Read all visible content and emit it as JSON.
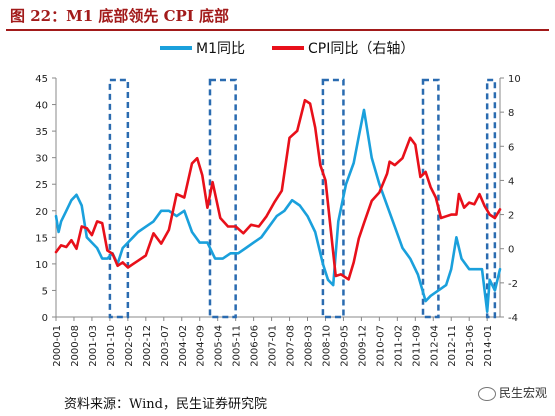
{
  "header": {
    "title": "图 22：M1 底部领先 CPI 底部"
  },
  "footer": {
    "source": "资料来源：Wind，民生证券研究院",
    "watermark": "民生宏观"
  },
  "colors": {
    "m1": "#1aa0dc",
    "cpi": "#e8101a",
    "box": "#2a6bb0",
    "title": "#a21a1a"
  },
  "chart_data": {
    "type": "line",
    "title": "",
    "xlabel": "",
    "ylabel": "",
    "ylim": [
      0,
      45
    ],
    "y2lim": [
      -4,
      10
    ],
    "yticks": [
      0,
      5,
      10,
      15,
      20,
      25,
      30,
      35,
      40,
      45
    ],
    "y2ticks": [
      -4,
      -2,
      0,
      2,
      4,
      6,
      8,
      10
    ],
    "x_tick_labels": [
      "2000-01",
      "2000-08",
      "2001-03",
      "2001-10",
      "2002-05",
      "2002-12",
      "2003-07",
      "2004-02",
      "2004-09",
      "2005-04",
      "2005-11",
      "2006-06",
      "2007-01",
      "2007-08",
      "2008-03",
      "2008-10",
      "2009-05",
      "2009-12",
      "2010-07",
      "2011-02",
      "2011-09",
      "2012-04",
      "2012-11",
      "2013-06",
      "2014-01"
    ],
    "legend": [
      "M1同比",
      "CPI同比（右轴）"
    ],
    "legend_position": "top",
    "highlight_windows": [
      [
        "2001-10",
        "2002-05"
      ],
      [
        "2005-01",
        "2005-11"
      ],
      [
        "2008-09",
        "2009-05"
      ],
      [
        "2011-12",
        "2012-06"
      ],
      [
        "2014-01",
        "2014-04"
      ]
    ],
    "series": [
      {
        "name": "M1同比",
        "axis": "left",
        "points": [
          [
            "2000-01",
            19
          ],
          [
            "2000-02",
            16
          ],
          [
            "2000-03",
            18
          ],
          [
            "2000-05",
            20
          ],
          [
            "2000-07",
            22
          ],
          [
            "2000-09",
            23
          ],
          [
            "2000-11",
            21
          ],
          [
            "2001-01",
            15
          ],
          [
            "2001-03",
            14
          ],
          [
            "2001-05",
            13
          ],
          [
            "2001-07",
            11
          ],
          [
            "2001-09",
            11
          ],
          [
            "2001-11",
            12
          ],
          [
            "2002-01",
            10
          ],
          [
            "2002-03",
            13
          ],
          [
            "2002-05",
            14
          ],
          [
            "2002-07",
            15
          ],
          [
            "2002-09",
            16
          ],
          [
            "2002-12",
            17
          ],
          [
            "2003-03",
            18
          ],
          [
            "2003-06",
            20
          ],
          [
            "2003-09",
            20
          ],
          [
            "2003-12",
            19
          ],
          [
            "2004-03",
            20
          ],
          [
            "2004-06",
            16
          ],
          [
            "2004-09",
            14
          ],
          [
            "2004-12",
            14
          ],
          [
            "2005-03",
            11
          ],
          [
            "2005-06",
            11
          ],
          [
            "2005-09",
            12
          ],
          [
            "2005-12",
            12
          ],
          [
            "2006-03",
            13
          ],
          [
            "2006-06",
            14
          ],
          [
            "2006-09",
            15
          ],
          [
            "2006-12",
            17
          ],
          [
            "2007-03",
            19
          ],
          [
            "2007-06",
            20
          ],
          [
            "2007-09",
            22
          ],
          [
            "2007-12",
            21
          ],
          [
            "2008-03",
            19
          ],
          [
            "2008-06",
            16
          ],
          [
            "2008-09",
            10
          ],
          [
            "2008-11",
            7
          ],
          [
            "2009-01",
            6
          ],
          [
            "2009-03",
            18
          ],
          [
            "2009-06",
            25
          ],
          [
            "2009-09",
            29
          ],
          [
            "2009-11",
            34
          ],
          [
            "2010-01",
            39
          ],
          [
            "2010-04",
            30
          ],
          [
            "2010-07",
            25
          ],
          [
            "2010-10",
            21
          ],
          [
            "2011-01",
            17
          ],
          [
            "2011-04",
            13
          ],
          [
            "2011-07",
            11
          ],
          [
            "2011-10",
            8
          ],
          [
            "2012-01",
            3
          ],
          [
            "2012-03",
            4
          ],
          [
            "2012-06",
            5
          ],
          [
            "2012-09",
            6
          ],
          [
            "2012-11",
            9
          ],
          [
            "2013-01",
            15
          ],
          [
            "2013-03",
            11
          ],
          [
            "2013-06",
            9
          ],
          [
            "2013-09",
            9
          ],
          [
            "2013-11",
            9
          ],
          [
            "2014-01",
            1
          ],
          [
            "2014-02",
            7
          ],
          [
            "2014-04",
            5
          ],
          [
            "2014-06",
            9
          ]
        ]
      },
      {
        "name": "CPI同比（右轴）",
        "axis": "right",
        "points": [
          [
            "2000-01",
            -0.2
          ],
          [
            "2000-03",
            0.2
          ],
          [
            "2000-05",
            0.1
          ],
          [
            "2000-07",
            0.5
          ],
          [
            "2000-09",
            0.0
          ],
          [
            "2000-11",
            1.3
          ],
          [
            "2001-01",
            1.2
          ],
          [
            "2001-03",
            0.8
          ],
          [
            "2001-05",
            1.6
          ],
          [
            "2001-07",
            1.5
          ],
          [
            "2001-09",
            -0.1
          ],
          [
            "2001-11",
            -0.3
          ],
          [
            "2002-01",
            -1.0
          ],
          [
            "2002-03",
            -0.8
          ],
          [
            "2002-05",
            -1.1
          ],
          [
            "2002-07",
            -0.9
          ],
          [
            "2002-09",
            -0.7
          ],
          [
            "2002-12",
            -0.4
          ],
          [
            "2003-03",
            0.9
          ],
          [
            "2003-06",
            0.3
          ],
          [
            "2003-09",
            1.1
          ],
          [
            "2003-12",
            3.2
          ],
          [
            "2004-03",
            3.0
          ],
          [
            "2004-06",
            5.0
          ],
          [
            "2004-08",
            5.3
          ],
          [
            "2004-10",
            4.3
          ],
          [
            "2004-12",
            2.4
          ],
          [
            "2005-02",
            3.9
          ],
          [
            "2005-05",
            1.8
          ],
          [
            "2005-08",
            1.3
          ],
          [
            "2005-11",
            1.3
          ],
          [
            "2006-02",
            0.9
          ],
          [
            "2006-05",
            1.4
          ],
          [
            "2006-08",
            1.3
          ],
          [
            "2006-11",
            1.9
          ],
          [
            "2007-02",
            2.7
          ],
          [
            "2007-05",
            3.4
          ],
          [
            "2007-08",
            6.5
          ],
          [
            "2007-11",
            6.9
          ],
          [
            "2008-02",
            8.7
          ],
          [
            "2008-04",
            8.5
          ],
          [
            "2008-06",
            7.1
          ],
          [
            "2008-08",
            4.9
          ],
          [
            "2008-10",
            4.0
          ],
          [
            "2008-12",
            1.2
          ],
          [
            "2009-02",
            -1.6
          ],
          [
            "2009-04",
            -1.5
          ],
          [
            "2009-07",
            -1.8
          ],
          [
            "2009-09",
            -0.8
          ],
          [
            "2009-11",
            0.6
          ],
          [
            "2010-01",
            1.5
          ],
          [
            "2010-04",
            2.8
          ],
          [
            "2010-07",
            3.3
          ],
          [
            "2010-10",
            4.4
          ],
          [
            "2010-11",
            5.1
          ],
          [
            "2011-01",
            4.9
          ],
          [
            "2011-04",
            5.3
          ],
          [
            "2011-07",
            6.5
          ],
          [
            "2011-09",
            6.1
          ],
          [
            "2011-11",
            4.2
          ],
          [
            "2012-01",
            4.5
          ],
          [
            "2012-03",
            3.6
          ],
          [
            "2012-05",
            3.0
          ],
          [
            "2012-07",
            1.8
          ],
          [
            "2012-09",
            1.9
          ],
          [
            "2012-11",
            2.0
          ],
          [
            "2013-01",
            2.0
          ],
          [
            "2013-02",
            3.2
          ],
          [
            "2013-04",
            2.4
          ],
          [
            "2013-06",
            2.7
          ],
          [
            "2013-08",
            2.6
          ],
          [
            "2013-10",
            3.2
          ],
          [
            "2013-12",
            2.5
          ],
          [
            "2014-02",
            2.0
          ],
          [
            "2014-04",
            1.8
          ],
          [
            "2014-06",
            2.3
          ]
        ]
      }
    ]
  }
}
